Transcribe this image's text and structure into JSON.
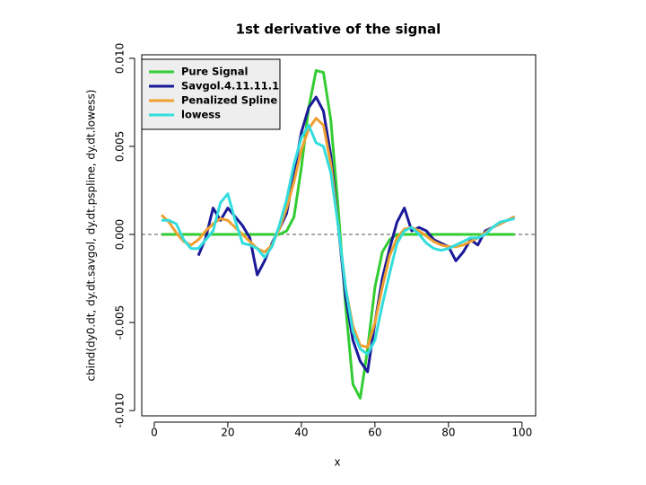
{
  "chart_data": {
    "type": "line",
    "title": "1st derivative of the signal",
    "xlabel": "x",
    "ylabel": "cbind(dy0.dt, dy.dt.savgol, dy.dt.pspline, dy.dt.lowess)",
    "x": [
      2,
      4,
      6,
      8,
      10,
      12,
      14,
      16,
      18,
      20,
      22,
      24,
      26,
      28,
      30,
      32,
      34,
      36,
      38,
      40,
      42,
      44,
      46,
      48,
      50,
      52,
      54,
      56,
      58,
      60,
      62,
      64,
      66,
      68,
      70,
      72,
      74,
      76,
      78,
      80,
      82,
      84,
      86,
      88,
      90,
      92,
      94,
      96,
      98
    ],
    "series": [
      {
        "name": "Pure Signal",
        "color": "#33cc33",
        "values": [
          0,
          0,
          0,
          0,
          0,
          0,
          0,
          0,
          0,
          0,
          0,
          0,
          0,
          0,
          0,
          0,
          0,
          0.0002,
          0.001,
          0.0038,
          0.0072,
          0.0093,
          0.0092,
          0.0065,
          0.0015,
          -0.004,
          -0.0085,
          -0.0093,
          -0.0065,
          -0.003,
          -0.001,
          -0.0003,
          0,
          0,
          0,
          0,
          0,
          0,
          0,
          0,
          0,
          0,
          0,
          0,
          0,
          0,
          0,
          0,
          0
        ]
      },
      {
        "name": "Savgol.4.11.11.1",
        "color": "#1a1a99",
        "values": [
          null,
          null,
          null,
          null,
          null,
          -0.0012,
          -0.0002,
          0.0015,
          0.0008,
          0.0015,
          0.001,
          0.0005,
          -0.0002,
          -0.0023,
          -0.0015,
          -0.0005,
          0.0003,
          0.0012,
          0.0035,
          0.0058,
          0.0072,
          0.0078,
          0.007,
          0.0045,
          0.0005,
          -0.0035,
          -0.006,
          -0.0072,
          -0.0078,
          -0.005,
          -0.0025,
          -0.0008,
          0.0007,
          0.0015,
          0.0002,
          0.0004,
          0.0002,
          -0.0003,
          -0.0005,
          -0.0007,
          -0.0015,
          -0.001,
          -0.0003,
          -0.0006,
          0.0002,
          0.0004,
          0.0006,
          0.0008,
          0.001
        ]
      },
      {
        "name": "Penalized Spline",
        "color": "#f0a030",
        "values": [
          0.0011,
          0.0007,
          0.0001,
          -0.0004,
          -0.0006,
          -0.0003,
          0.0002,
          0.0006,
          0.0009,
          0.0008,
          0.0004,
          0,
          -0.0004,
          -0.0008,
          -0.001,
          -0.0006,
          0.0003,
          0.0015,
          0.003,
          0.0048,
          0.006,
          0.0066,
          0.0062,
          0.004,
          0.0005,
          -0.003,
          -0.0052,
          -0.0063,
          -0.0064,
          -0.005,
          -0.003,
          -0.0012,
          -0.0002,
          0.0003,
          0.0004,
          0.0002,
          -0.0001,
          -0.0004,
          -0.0006,
          -0.0007,
          -0.0007,
          -0.0006,
          -0.0004,
          -0.0002,
          0.0001,
          0.0004,
          0.0006,
          0.0008,
          0.001
        ]
      },
      {
        "name": "lowess",
        "color": "#33dddd",
        "values": [
          0.0008,
          0.0008,
          0.0006,
          -0.0003,
          -0.0008,
          -0.0008,
          -0.0003,
          0.0002,
          0.0018,
          0.0023,
          0.0008,
          -0.0005,
          -0.0006,
          -0.0008,
          -0.0013,
          -0.0007,
          0.0005,
          0.002,
          0.004,
          0.0055,
          0.0062,
          0.0052,
          0.005,
          0.0035,
          0.0005,
          -0.003,
          -0.0055,
          -0.0065,
          -0.0068,
          -0.006,
          -0.004,
          -0.0022,
          -0.0005,
          0.0002,
          0.0004,
          0,
          -0.0005,
          -0.0008,
          -0.0009,
          -0.0008,
          -0.0006,
          -0.0004,
          -0.0002,
          -0.0002,
          0,
          0.0004,
          0.0007,
          0.0008,
          0.0009
        ]
      }
    ],
    "reference_line": 0,
    "xlim": [
      -3.4,
      103.7
    ],
    "ylim": [
      -0.0103,
      0.0102
    ],
    "xticks": [
      0,
      20,
      40,
      60,
      80,
      100
    ],
    "yticks": [
      {
        "value": -0.01,
        "label": "-0.010"
      },
      {
        "value": -0.005,
        "label": "-0.005"
      },
      {
        "value": 0,
        "label": "0.000"
      },
      {
        "value": 0.005,
        "label": "0.005"
      },
      {
        "value": 0.01,
        "label": "0.010"
      }
    ],
    "legend": "top-left"
  }
}
